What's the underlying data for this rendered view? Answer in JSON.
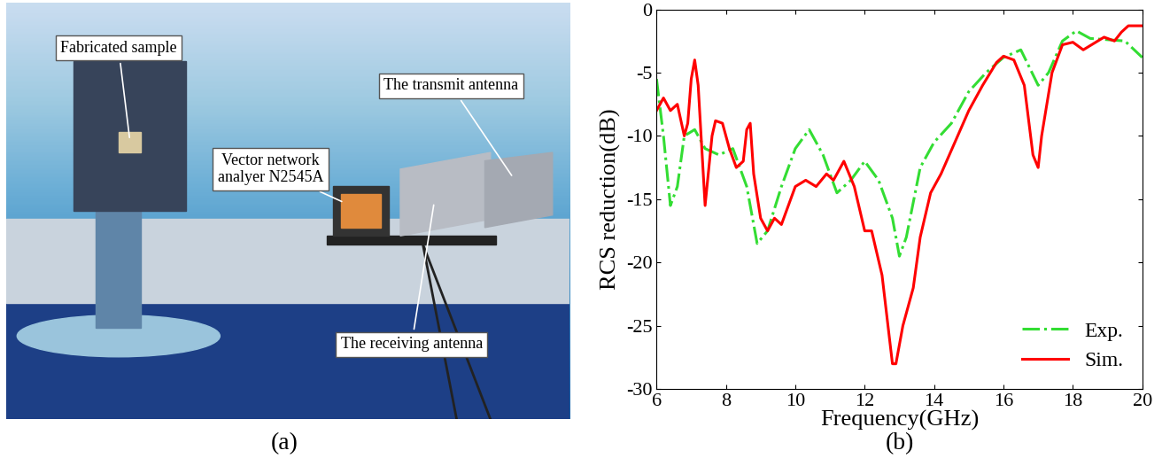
{
  "panel_a": {
    "caption": "(a)",
    "labels": [
      "Fabricated sample",
      "The transmit antenna",
      "Vector network\nanalyer N2545A",
      "The receiving antenna"
    ]
  },
  "chart_data": {
    "type": "line",
    "caption": "(b)",
    "x_label": "Frequency(GHz)",
    "y_label": "RCS reduction(dB)",
    "xlim": [
      6,
      20
    ],
    "xticks": [
      6,
      8,
      10,
      12,
      14,
      16,
      18,
      20
    ],
    "ylim": [
      -30,
      0
    ],
    "yticks": [
      -30,
      -25,
      -20,
      -15,
      -10,
      -5,
      0
    ],
    "grid": false,
    "legend": "lower right",
    "series": [
      {
        "name": "Exp.",
        "color": "#33dd33",
        "line_style": "dashdot",
        "x": [
          6.0,
          6.2,
          6.4,
          6.6,
          6.8,
          7.1,
          7.4,
          7.8,
          8.2,
          8.6,
          8.9,
          9.2,
          9.6,
          10.0,
          10.4,
          10.8,
          11.2,
          11.6,
          12.0,
          12.4,
          12.8,
          13.0,
          13.2,
          13.6,
          14.0,
          14.5,
          15.0,
          15.5,
          16.0,
          16.5,
          17.0,
          17.3,
          17.7,
          18.1,
          18.5,
          19.0,
          19.5,
          20.0
        ],
        "values": [
          -5.5,
          -10,
          -15.5,
          -14,
          -10,
          -9.5,
          -11,
          -11.5,
          -11,
          -14,
          -18.5,
          -17.5,
          -14,
          -11,
          -9.5,
          -11.5,
          -14.5,
          -13.5,
          -12,
          -13.5,
          -16.5,
          -19.5,
          -18,
          -12.5,
          -10.5,
          -9,
          -6.5,
          -5,
          -3.8,
          -3.2,
          -6,
          -5,
          -2.5,
          -1.7,
          -2.3,
          -2.4,
          -2.5,
          -3.8
        ]
      },
      {
        "name": "Sim.",
        "color": "#ff0000",
        "line_style": "solid",
        "x": [
          6.0,
          6.2,
          6.4,
          6.6,
          6.8,
          6.9,
          7.0,
          7.1,
          7.2,
          7.4,
          7.6,
          7.7,
          7.9,
          8.1,
          8.3,
          8.5,
          8.6,
          8.7,
          8.8,
          9.0,
          9.2,
          9.4,
          9.6,
          9.8,
          10.0,
          10.3,
          10.6,
          10.9,
          11.1,
          11.4,
          11.7,
          12.0,
          12.2,
          12.5,
          12.8,
          12.9,
          13.1,
          13.4,
          13.6,
          13.9,
          14.2,
          14.6,
          15.0,
          15.4,
          15.8,
          16.0,
          16.3,
          16.6,
          16.85,
          17.0,
          17.1,
          17.4,
          17.7,
          18.0,
          18.3,
          18.6,
          18.9,
          19.2,
          19.4,
          19.6,
          20.0
        ],
        "values": [
          -8,
          -7,
          -8,
          -7.5,
          -10,
          -9,
          -5.5,
          -4,
          -6,
          -15.5,
          -10,
          -8.8,
          -9,
          -11,
          -12.5,
          -12,
          -9.5,
          -9,
          -13,
          -16.5,
          -17.5,
          -16.5,
          -17,
          -15.5,
          -14,
          -13.5,
          -14,
          -13,
          -13.5,
          -12,
          -14,
          -17.5,
          -17.5,
          -21,
          -28,
          -28,
          -25,
          -22,
          -18,
          -14.5,
          -13,
          -10.5,
          -8,
          -6,
          -4.2,
          -3.7,
          -4,
          -6,
          -11.5,
          -12.5,
          -10,
          -5,
          -2.8,
          -2.6,
          -3.2,
          -2.7,
          -2.2,
          -2.5,
          -1.8,
          -1.3,
          -1.3
        ]
      }
    ]
  }
}
